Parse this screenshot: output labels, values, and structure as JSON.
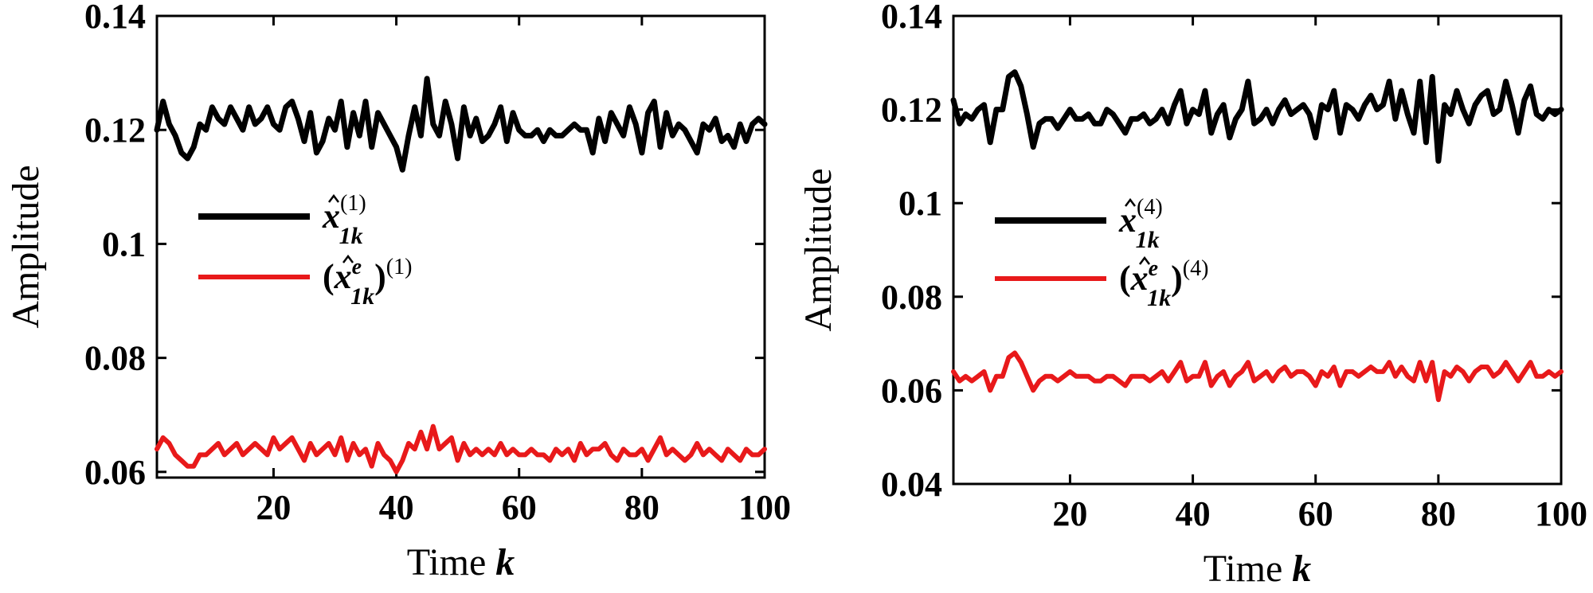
{
  "chart_data": [
    {
      "type": "line",
      "xlabel": "Time k",
      "xlabel_main": "Time",
      "xlabel_var": "k",
      "ylabel": "Amplitude",
      "xlim": [
        1,
        100
      ],
      "ylim": [
        0.059,
        0.14
      ],
      "xticks": [
        20,
        40,
        60,
        80,
        100
      ],
      "yticks": [
        0.06,
        0.08,
        0.1,
        0.12,
        0.14
      ],
      "ytick_labels": [
        "0.06",
        "0.08",
        "0.1",
        "0.12",
        "0.14"
      ],
      "grid": false,
      "legend": "center-left",
      "x": [
        1,
        2,
        3,
        4,
        5,
        6,
        7,
        8,
        9,
        10,
        11,
        12,
        13,
        14,
        15,
        16,
        17,
        18,
        19,
        20,
        21,
        22,
        23,
        24,
        25,
        26,
        27,
        28,
        29,
        30,
        31,
        32,
        33,
        34,
        35,
        36,
        37,
        38,
        39,
        40,
        41,
        42,
        43,
        44,
        45,
        46,
        47,
        48,
        49,
        50,
        51,
        52,
        53,
        54,
        55,
        56,
        57,
        58,
        59,
        60,
        61,
        62,
        63,
        64,
        65,
        66,
        67,
        68,
        69,
        70,
        71,
        72,
        73,
        74,
        75,
        76,
        77,
        78,
        79,
        80,
        81,
        82,
        83,
        84,
        85,
        86,
        87,
        88,
        89,
        90,
        91,
        92,
        93,
        94,
        95,
        96,
        97,
        98,
        99,
        100
      ],
      "series": [
        {
          "name_var": "x",
          "name_sub": "1k",
          "name_sup": "(1)",
          "paren": false,
          "color": "#000000",
          "values": [
            0.12,
            0.125,
            0.121,
            0.119,
            0.116,
            0.115,
            0.117,
            0.121,
            0.12,
            0.124,
            0.122,
            0.121,
            0.124,
            0.122,
            0.12,
            0.124,
            0.121,
            0.122,
            0.124,
            0.121,
            0.12,
            0.124,
            0.125,
            0.122,
            0.118,
            0.123,
            0.116,
            0.118,
            0.122,
            0.12,
            0.125,
            0.117,
            0.123,
            0.119,
            0.125,
            0.117,
            0.123,
            0.121,
            0.119,
            0.117,
            0.113,
            0.119,
            0.124,
            0.119,
            0.129,
            0.121,
            0.119,
            0.125,
            0.121,
            0.115,
            0.124,
            0.119,
            0.122,
            0.118,
            0.119,
            0.121,
            0.124,
            0.118,
            0.123,
            0.12,
            0.119,
            0.119,
            0.12,
            0.118,
            0.12,
            0.119,
            0.119,
            0.12,
            0.121,
            0.12,
            0.12,
            0.116,
            0.122,
            0.118,
            0.123,
            0.121,
            0.119,
            0.124,
            0.121,
            0.116,
            0.123,
            0.125,
            0.117,
            0.123,
            0.119,
            0.121,
            0.12,
            0.118,
            0.116,
            0.121,
            0.12,
            0.122,
            0.118,
            0.119,
            0.117,
            0.121,
            0.118,
            0.121,
            0.122,
            0.121
          ]
        },
        {
          "name_var": "x",
          "name_sub": "1k",
          "name_sup_inner": "e",
          "name_sup": "(1)",
          "paren": true,
          "color": "#e8191a",
          "values": [
            0.064,
            0.066,
            0.065,
            0.063,
            0.062,
            0.061,
            0.061,
            0.063,
            0.063,
            0.064,
            0.065,
            0.063,
            0.064,
            0.065,
            0.063,
            0.064,
            0.065,
            0.064,
            0.063,
            0.066,
            0.064,
            0.065,
            0.066,
            0.064,
            0.062,
            0.065,
            0.063,
            0.064,
            0.065,
            0.063,
            0.066,
            0.062,
            0.065,
            0.063,
            0.064,
            0.061,
            0.065,
            0.063,
            0.062,
            0.06,
            0.062,
            0.065,
            0.064,
            0.067,
            0.064,
            0.068,
            0.064,
            0.065,
            0.066,
            0.062,
            0.065,
            0.063,
            0.064,
            0.063,
            0.064,
            0.063,
            0.065,
            0.063,
            0.064,
            0.063,
            0.063,
            0.064,
            0.063,
            0.063,
            0.062,
            0.064,
            0.063,
            0.064,
            0.062,
            0.065,
            0.063,
            0.064,
            0.064,
            0.065,
            0.063,
            0.062,
            0.064,
            0.063,
            0.063,
            0.064,
            0.062,
            0.064,
            0.066,
            0.063,
            0.064,
            0.063,
            0.062,
            0.063,
            0.065,
            0.063,
            0.064,
            0.063,
            0.062,
            0.064,
            0.063,
            0.062,
            0.064,
            0.063,
            0.063,
            0.064
          ]
        }
      ]
    },
    {
      "type": "line",
      "xlabel": "Time k",
      "xlabel_main": "Time",
      "xlabel_var": "k",
      "ylabel": "Amplitude",
      "xlim": [
        1,
        100
      ],
      "ylim": [
        0.04,
        0.14
      ],
      "xticks": [
        20,
        40,
        60,
        80,
        100
      ],
      "yticks": [
        0.04,
        0.06,
        0.08,
        0.1,
        0.12,
        0.14
      ],
      "ytick_labels": [
        "0.04",
        "0.06",
        "0.08",
        "0.1",
        "0.12",
        "0.14"
      ],
      "grid": false,
      "legend": "center-left",
      "x": [
        1,
        2,
        3,
        4,
        5,
        6,
        7,
        8,
        9,
        10,
        11,
        12,
        13,
        14,
        15,
        16,
        17,
        18,
        19,
        20,
        21,
        22,
        23,
        24,
        25,
        26,
        27,
        28,
        29,
        30,
        31,
        32,
        33,
        34,
        35,
        36,
        37,
        38,
        39,
        40,
        41,
        42,
        43,
        44,
        45,
        46,
        47,
        48,
        49,
        50,
        51,
        52,
        53,
        54,
        55,
        56,
        57,
        58,
        59,
        60,
        61,
        62,
        63,
        64,
        65,
        66,
        67,
        68,
        69,
        70,
        71,
        72,
        73,
        74,
        75,
        76,
        77,
        78,
        79,
        80,
        81,
        82,
        83,
        84,
        85,
        86,
        87,
        88,
        89,
        90,
        91,
        92,
        93,
        94,
        95,
        96,
        97,
        98,
        99,
        100
      ],
      "series": [
        {
          "name_var": "x",
          "name_sub": "1k",
          "name_sup": "(4)",
          "paren": false,
          "color": "#000000",
          "values": [
            0.122,
            0.117,
            0.119,
            0.118,
            0.12,
            0.121,
            0.113,
            0.12,
            0.12,
            0.127,
            0.128,
            0.125,
            0.119,
            0.112,
            0.117,
            0.118,
            0.118,
            0.116,
            0.118,
            0.12,
            0.118,
            0.118,
            0.119,
            0.117,
            0.117,
            0.12,
            0.119,
            0.117,
            0.115,
            0.118,
            0.118,
            0.119,
            0.117,
            0.118,
            0.12,
            0.117,
            0.121,
            0.124,
            0.117,
            0.12,
            0.119,
            0.124,
            0.115,
            0.119,
            0.121,
            0.114,
            0.118,
            0.12,
            0.126,
            0.117,
            0.118,
            0.12,
            0.117,
            0.12,
            0.122,
            0.119,
            0.12,
            0.121,
            0.119,
            0.114,
            0.121,
            0.12,
            0.124,
            0.115,
            0.121,
            0.12,
            0.118,
            0.121,
            0.123,
            0.12,
            0.121,
            0.126,
            0.118,
            0.124,
            0.119,
            0.115,
            0.126,
            0.113,
            0.127,
            0.109,
            0.121,
            0.119,
            0.124,
            0.12,
            0.117,
            0.121,
            0.123,
            0.124,
            0.119,
            0.12,
            0.126,
            0.121,
            0.115,
            0.122,
            0.125,
            0.119,
            0.118,
            0.12,
            0.119,
            0.12
          ]
        },
        {
          "name_var": "x",
          "name_sub": "1k",
          "name_sup_inner": "e",
          "name_sup": "(4)",
          "paren": true,
          "color": "#e8191a",
          "values": [
            0.064,
            0.062,
            0.063,
            0.062,
            0.063,
            0.064,
            0.06,
            0.063,
            0.063,
            0.067,
            0.068,
            0.066,
            0.063,
            0.06,
            0.062,
            0.063,
            0.063,
            0.062,
            0.063,
            0.064,
            0.063,
            0.063,
            0.063,
            0.062,
            0.062,
            0.063,
            0.063,
            0.062,
            0.061,
            0.063,
            0.063,
            0.063,
            0.062,
            0.063,
            0.064,
            0.062,
            0.064,
            0.066,
            0.062,
            0.063,
            0.063,
            0.066,
            0.061,
            0.063,
            0.064,
            0.061,
            0.063,
            0.064,
            0.066,
            0.062,
            0.063,
            0.064,
            0.062,
            0.064,
            0.065,
            0.063,
            0.064,
            0.064,
            0.063,
            0.061,
            0.064,
            0.063,
            0.065,
            0.061,
            0.064,
            0.064,
            0.063,
            0.064,
            0.065,
            0.064,
            0.064,
            0.066,
            0.063,
            0.065,
            0.063,
            0.062,
            0.066,
            0.062,
            0.066,
            0.058,
            0.064,
            0.063,
            0.065,
            0.064,
            0.062,
            0.064,
            0.065,
            0.065,
            0.063,
            0.064,
            0.066,
            0.064,
            0.062,
            0.064,
            0.066,
            0.063,
            0.063,
            0.064,
            0.063,
            0.064
          ]
        }
      ]
    }
  ]
}
